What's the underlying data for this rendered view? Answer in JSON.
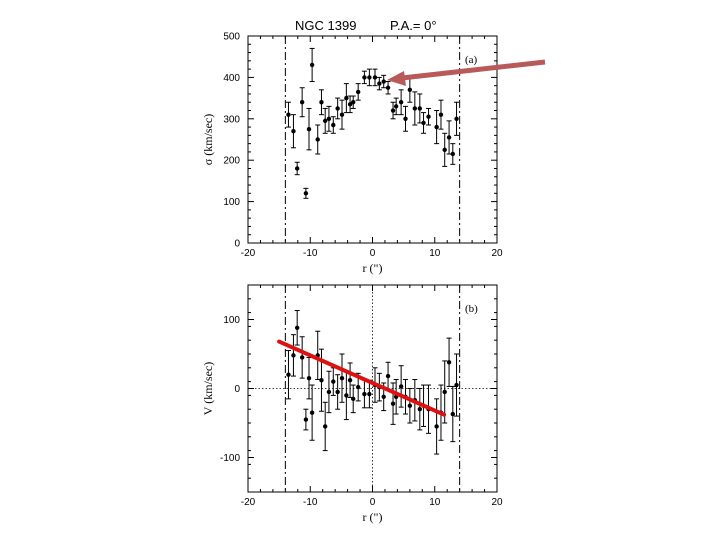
{
  "title": {
    "galaxy": "NGC 1399",
    "pa": "P.A.= 0°"
  },
  "chart_data": [
    {
      "type": "scatter",
      "panel_label": "(a)",
      "xlabel": "r (\")",
      "ylabel": "σ (km/sec)",
      "xlim": [
        -20,
        20
      ],
      "ylim": [
        0,
        500
      ],
      "xticks": [
        -20,
        -10,
        0,
        10,
        20
      ],
      "yticks": [
        0,
        100,
        200,
        300,
        400,
        500
      ],
      "vertical_lines": [
        -14,
        14
      ],
      "annotation": "arrow pointing to central dispersion peak",
      "x": [
        -13.5,
        -12.7,
        -12.1,
        -11.3,
        -10.7,
        -10.2,
        -9.7,
        -8.8,
        -8.2,
        -7.6,
        -7.0,
        -6.3,
        -5.6,
        -4.9,
        -4.2,
        -3.6,
        -3.1,
        -2.3,
        -1.3,
        -0.5,
        0.4,
        1.1,
        1.8,
        2.5,
        3.3,
        3.8,
        4.6,
        5.3,
        6.0,
        6.8,
        7.6,
        8.2,
        9.0,
        10.3,
        11.0,
        11.6,
        12.3,
        12.9,
        13.5
      ],
      "y": [
        310,
        270,
        180,
        340,
        120,
        275,
        430,
        250,
        340,
        295,
        300,
        285,
        325,
        310,
        350,
        335,
        340,
        365,
        400,
        400,
        400,
        385,
        390,
        375,
        320,
        330,
        340,
        300,
        370,
        325,
        325,
        290,
        305,
        280,
        310,
        225,
        255,
        215,
        300
      ],
      "err": [
        30,
        40,
        15,
        35,
        12,
        50,
        40,
        35,
        30,
        30,
        30,
        20,
        25,
        35,
        35,
        20,
        15,
        20,
        15,
        20,
        20,
        15,
        15,
        15,
        20,
        20,
        30,
        30,
        30,
        40,
        35,
        25,
        20,
        40,
        35,
        40,
        40,
        25,
        40
      ]
    },
    {
      "type": "scatter",
      "panel_label": "(b)",
      "xlabel": "r (\")",
      "ylabel": "V (km/sec)",
      "xlim": [
        -20,
        20
      ],
      "ylim": [
        -150,
        150
      ],
      "xticks": [
        -20,
        -10,
        0,
        10,
        20
      ],
      "yticks": [
        -100,
        0,
        100
      ],
      "vertical_lines": [
        -14,
        14
      ],
      "zero_lines": true,
      "trend_line": {
        "x": [
          -15,
          11.5
        ],
        "y": [
          68,
          -38
        ],
        "color": "#dd1111"
      },
      "x": [
        -13.5,
        -12.7,
        -12.1,
        -11.3,
        -10.7,
        -10.2,
        -9.7,
        -8.8,
        -8.2,
        -7.6,
        -7.0,
        -6.3,
        -5.6,
        -4.9,
        -4.2,
        -3.6,
        -3.1,
        -2.3,
        -1.3,
        -0.5,
        0.4,
        1.1,
        1.8,
        2.5,
        3.3,
        3.8,
        4.6,
        5.3,
        6.0,
        6.8,
        7.6,
        8.2,
        9.0,
        10.3,
        11.0,
        11.6,
        12.3,
        12.9,
        13.5
      ],
      "y": [
        20,
        48,
        88,
        45,
        -45,
        15,
        -35,
        48,
        12,
        -55,
        -5,
        10,
        -5,
        15,
        -10,
        12,
        -15,
        2,
        -8,
        -8,
        5,
        2,
        -12,
        18,
        -22,
        -12,
        3,
        -12,
        -25,
        -17,
        -30,
        -25,
        -30,
        -55,
        -35,
        -5,
        38,
        -37,
        5
      ],
      "err": [
        35,
        30,
        25,
        30,
        15,
        30,
        40,
        35,
        45,
        35,
        30,
        20,
        25,
        35,
        35,
        25,
        20,
        20,
        20,
        20,
        25,
        20,
        20,
        20,
        30,
        25,
        30,
        25,
        25,
        30,
        30,
        30,
        35,
        40,
        40,
        45,
        35,
        40,
        45
      ]
    }
  ]
}
